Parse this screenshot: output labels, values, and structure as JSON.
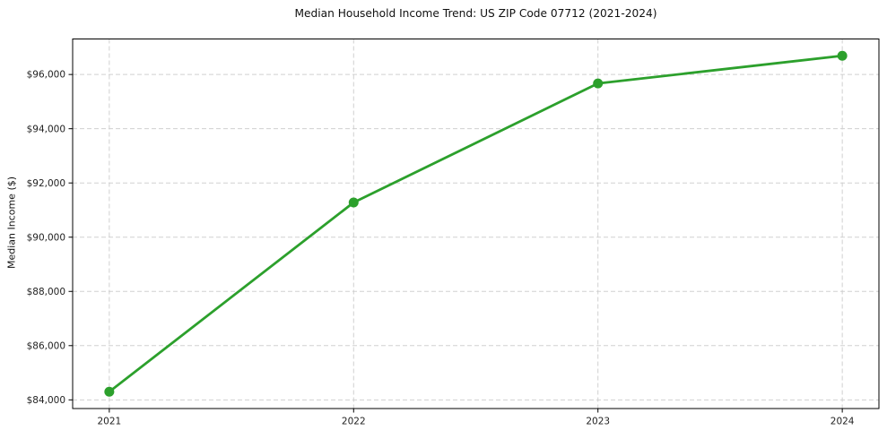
{
  "chart_data": {
    "type": "line",
    "title": "Median Household Income Trend: US ZIP Code 07712 (2021-2024)",
    "xlabel": "",
    "ylabel": "Median Income ($)",
    "categories": [
      2021,
      2022,
      2023,
      2024
    ],
    "xtick_labels": [
      "2021",
      "2022",
      "2023",
      "2024"
    ],
    "values": [
      84300,
      91280,
      95670,
      96690
    ],
    "yticks": [
      84000,
      86000,
      88000,
      90000,
      92000,
      94000,
      96000
    ],
    "ytick_labels": [
      "$84,000",
      "$86,000",
      "$88,000",
      "$90,000",
      "$92,000",
      "$94,000",
      "$96,000"
    ],
    "xlim": [
      2020.85,
      2024.15
    ],
    "ylim": [
      83680,
      97310
    ],
    "grid": "dashed, both axes",
    "legend": "none",
    "marker": "circle",
    "colors": {
      "line": "#2ca02c",
      "marker": "#2ca02c",
      "grid": "#d0d0d0",
      "spine": "#000000",
      "tick_text": "#222222",
      "background": "#ffffff"
    }
  }
}
